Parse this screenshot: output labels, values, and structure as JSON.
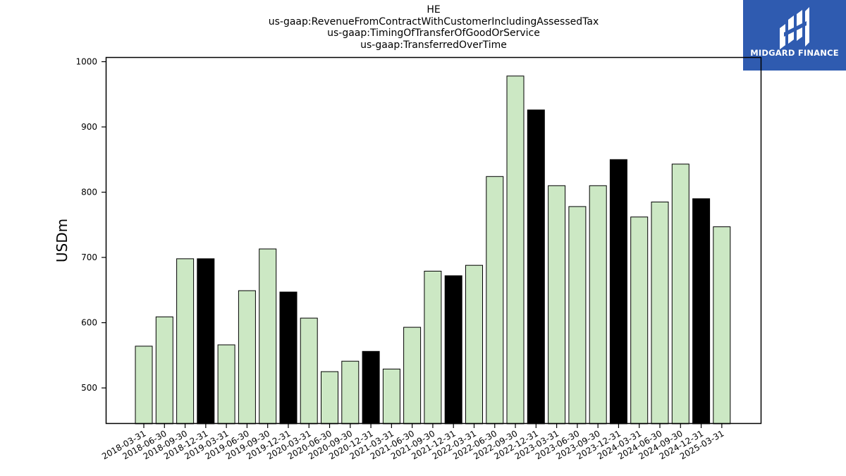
{
  "chart_data": {
    "type": "bar",
    "title_lines": [
      "HE",
      "us-gaap:RevenueFromContractWithCustomerIncludingAssessedTax",
      "us-gaap:TimingOfTransferOfGoodOrService",
      "us-gaap:TransferredOverTime"
    ],
    "xlabel": "",
    "ylabel": "USDm",
    "ylim": [
      445,
      1007
    ],
    "yticks": [
      500,
      600,
      700,
      800,
      900,
      1000
    ],
    "categories": [
      "2018-03-31",
      "2018-06-30",
      "2018-09-30",
      "2018-12-31",
      "2019-03-31",
      "2019-06-30",
      "2019-09-30",
      "2019-12-31",
      "2020-03-31",
      "2020-06-30",
      "2020-09-30",
      "2020-12-31",
      "2021-03-31",
      "2021-06-30",
      "2021-09-30",
      "2021-12-31",
      "2022-03-31",
      "2022-06-30",
      "2022-09-30",
      "2022-12-31",
      "2023-03-31",
      "2023-06-30",
      "2023-09-30",
      "2023-12-31",
      "2024-03-31",
      "2024-06-30",
      "2024-09-30",
      "2024-12-31",
      "2025-03-31"
    ],
    "values": [
      564,
      609,
      698,
      698,
      566,
      649,
      713,
      647,
      607,
      525,
      541,
      556,
      529,
      593,
      679,
      672,
      688,
      824,
      978,
      926,
      810,
      778,
      810,
      850,
      762,
      785,
      843,
      790,
      747
    ],
    "highlight": [
      false,
      false,
      false,
      true,
      false,
      false,
      false,
      true,
      false,
      false,
      false,
      true,
      false,
      false,
      false,
      true,
      false,
      false,
      false,
      true,
      false,
      false,
      false,
      true,
      false,
      false,
      false,
      true,
      false
    ],
    "colors": {
      "normal": "#cce8c4",
      "highlight": "#000000",
      "edge": "#000000"
    },
    "grid": false
  },
  "logo": {
    "text": "MIDGARD FINANCE",
    "background": "#2f5bb0"
  }
}
